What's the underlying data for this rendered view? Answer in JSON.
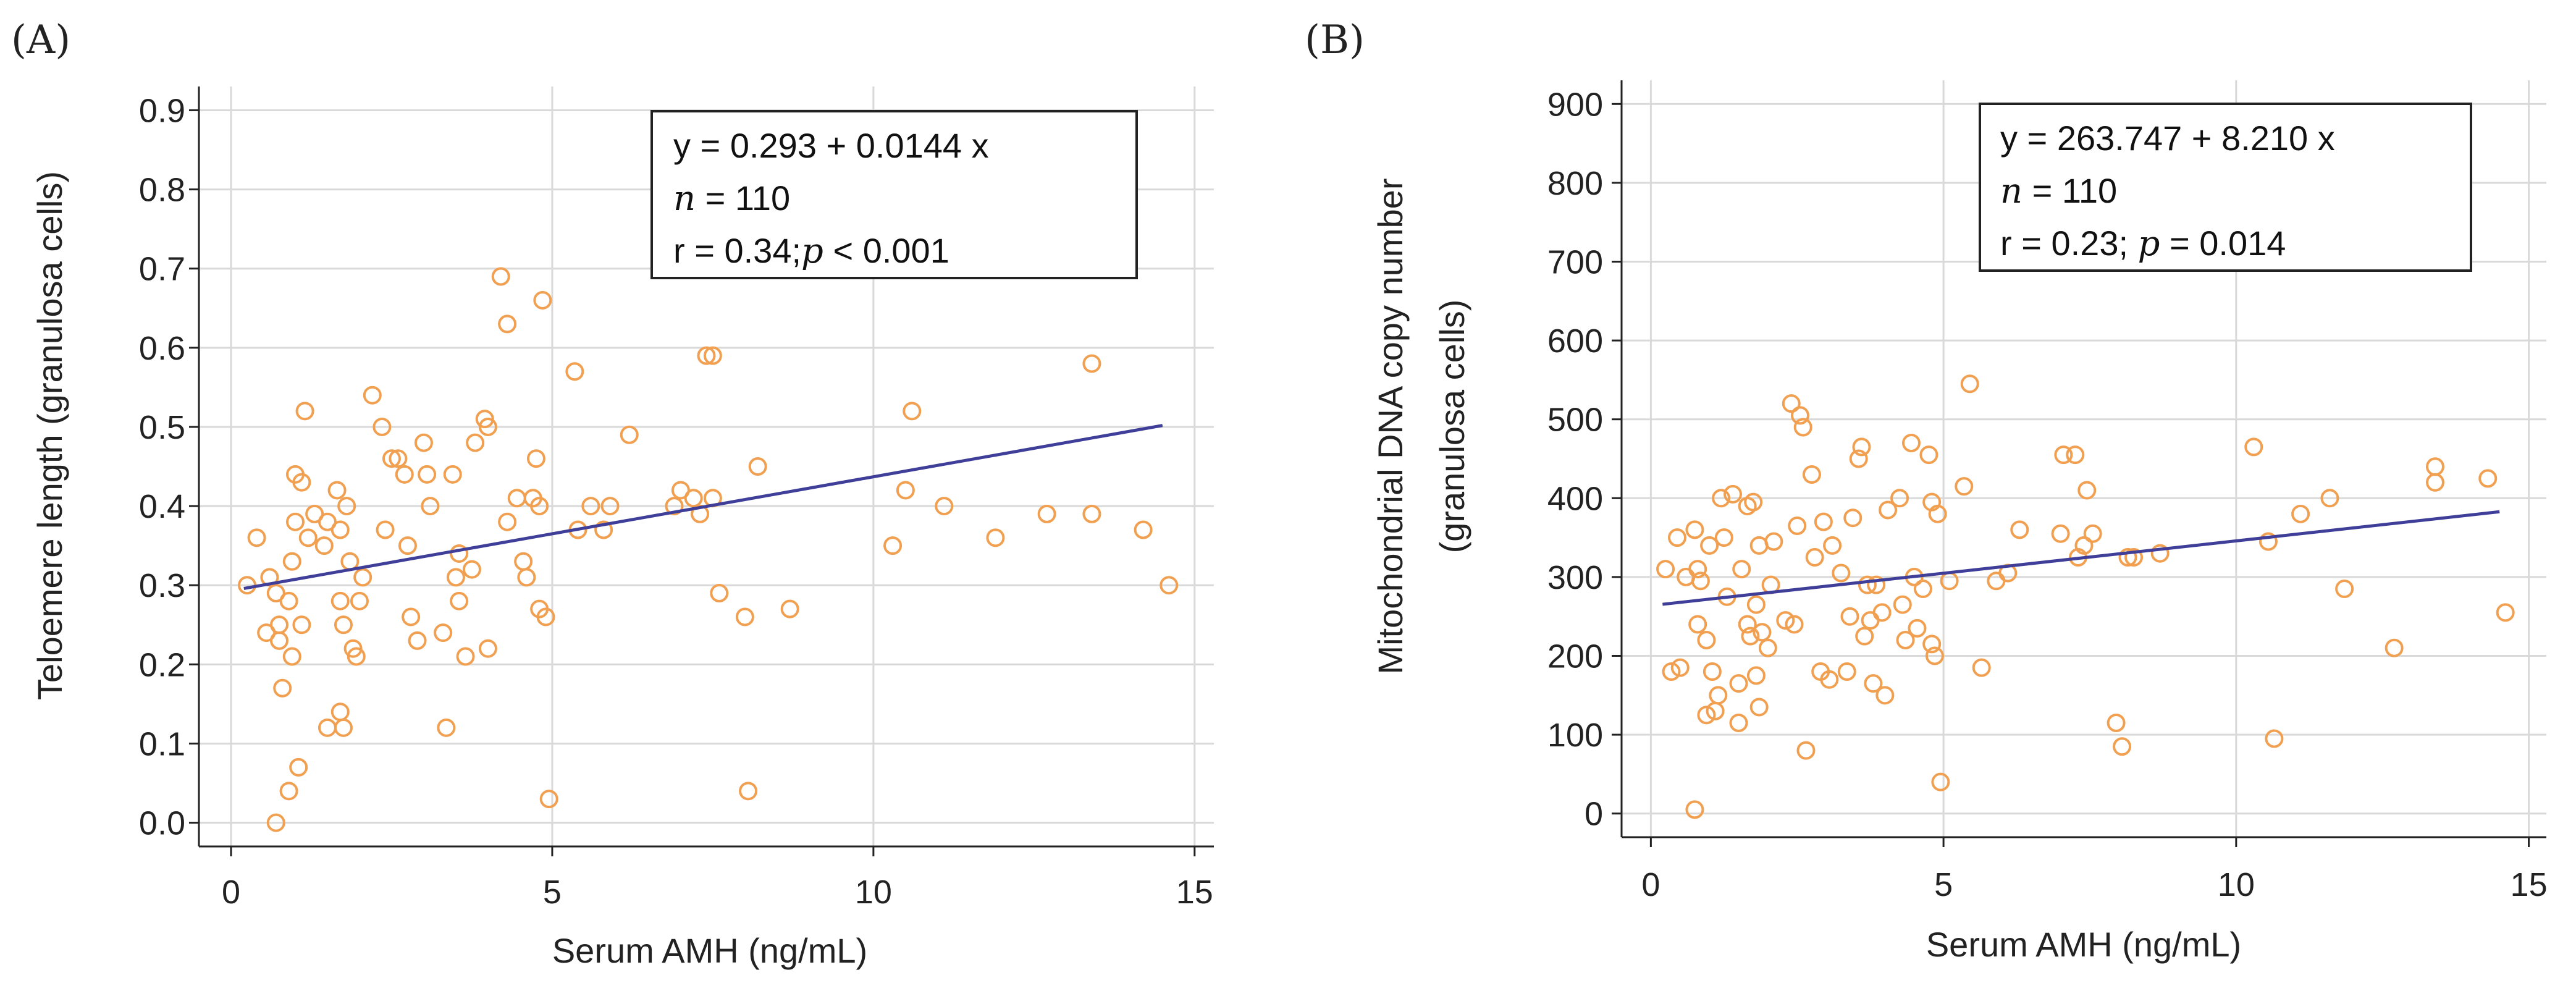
{
  "chart_data": [
    {
      "type": "scatter",
      "panel_label": "(A)",
      "xlabel": "Serum AMH (ng/mL)",
      "ylabel_lines": [
        "Teloemere length  (granulosa cells)"
      ],
      "xlim": [
        -0.5,
        15.3
      ],
      "ylim": [
        -0.03,
        0.93
      ],
      "xticks": [
        0,
        5,
        10,
        15
      ],
      "xtick_labels": [
        "0",
        "5",
        "10",
        "15"
      ],
      "yticks": [
        0,
        0.1,
        0.2,
        0.3,
        0.4,
        0.5,
        0.6,
        0.7,
        0.8,
        0.9
      ],
      "ytick_labels": [
        "0.0",
        "0.1",
        "0.2",
        "0.3",
        "0.4",
        "0.5",
        "0.6",
        "0.7",
        "0.8",
        "0.9"
      ],
      "grid": true,
      "regression": {
        "intercept": 0.293,
        "slope": 0.0144,
        "x_range": [
          0.2,
          14.5
        ]
      },
      "stats": {
        "eq_prefix": "y = 0.293  +  0.0144  x",
        "n_symbol": "n",
        "n_text": " = 110",
        "r_text": "r = 0.34;",
        "p_symbol": "p",
        "p_text": " < 0.001"
      },
      "annotation_position": "top-right",
      "colors": {
        "point": "#f0a050",
        "line": "#3f3f9a"
      },
      "points": [
        [
          0.25,
          0.3
        ],
        [
          0.4,
          0.36
        ],
        [
          0.55,
          0.24
        ],
        [
          0.6,
          0.31
        ],
        [
          0.7,
          0.29
        ],
        [
          0.75,
          0.25
        ],
        [
          0.75,
          0.23
        ],
        [
          0.8,
          0.17
        ],
        [
          0.7,
          0.0
        ],
        [
          0.9,
          0.04
        ],
        [
          0.95,
          0.21
        ],
        [
          0.9,
          0.28
        ],
        [
          0.95,
          0.33
        ],
        [
          1.0,
          0.38
        ],
        [
          1.0,
          0.44
        ],
        [
          1.1,
          0.43
        ],
        [
          1.15,
          0.52
        ],
        [
          1.2,
          0.36
        ],
        [
          1.3,
          0.39
        ],
        [
          1.1,
          0.25
        ],
        [
          1.05,
          0.07
        ],
        [
          1.5,
          0.38
        ],
        [
          1.45,
          0.35
        ],
        [
          1.5,
          0.12
        ],
        [
          1.65,
          0.42
        ],
        [
          1.7,
          0.37
        ],
        [
          1.7,
          0.28
        ],
        [
          1.75,
          0.25
        ],
        [
          1.7,
          0.14
        ],
        [
          1.75,
          0.12
        ],
        [
          1.8,
          0.4
        ],
        [
          1.85,
          0.33
        ],
        [
          1.9,
          0.22
        ],
        [
          1.95,
          0.21
        ],
        [
          2.0,
          0.28
        ],
        [
          2.05,
          0.31
        ],
        [
          2.2,
          0.54
        ],
        [
          2.35,
          0.5
        ],
        [
          2.4,
          0.37
        ],
        [
          2.5,
          0.46
        ],
        [
          2.6,
          0.46
        ],
        [
          2.7,
          0.44
        ],
        [
          2.75,
          0.35
        ],
        [
          2.8,
          0.26
        ],
        [
          2.9,
          0.23
        ],
        [
          3.0,
          0.48
        ],
        [
          3.05,
          0.44
        ],
        [
          3.1,
          0.4
        ],
        [
          3.3,
          0.24
        ],
        [
          3.35,
          0.12
        ],
        [
          3.45,
          0.44
        ],
        [
          3.5,
          0.31
        ],
        [
          3.55,
          0.34
        ],
        [
          3.55,
          0.28
        ],
        [
          3.65,
          0.21
        ],
        [
          3.75,
          0.32
        ],
        [
          3.8,
          0.48
        ],
        [
          3.95,
          0.51
        ],
        [
          4.0,
          0.5
        ],
        [
          4.0,
          0.22
        ],
        [
          4.2,
          0.69
        ],
        [
          4.3,
          0.63
        ],
        [
          4.3,
          0.38
        ],
        [
          4.45,
          0.41
        ],
        [
          4.55,
          0.33
        ],
        [
          4.6,
          0.31
        ],
        [
          4.7,
          0.41
        ],
        [
          4.75,
          0.46
        ],
        [
          4.8,
          0.4
        ],
        [
          4.8,
          0.27
        ],
        [
          4.85,
          0.66
        ],
        [
          4.9,
          0.26
        ],
        [
          4.95,
          0.03
        ],
        [
          5.35,
          0.57
        ],
        [
          5.4,
          0.37
        ],
        [
          5.6,
          0.4
        ],
        [
          5.8,
          0.37
        ],
        [
          5.9,
          0.4
        ],
        [
          6.2,
          0.49
        ],
        [
          6.9,
          0.4
        ],
        [
          7.0,
          0.42
        ],
        [
          7.2,
          0.41
        ],
        [
          7.3,
          0.39
        ],
        [
          7.4,
          0.59
        ],
        [
          7.5,
          0.59
        ],
        [
          7.5,
          0.41
        ],
        [
          7.6,
          0.29
        ],
        [
          8.0,
          0.26
        ],
        [
          8.05,
          0.04
        ],
        [
          8.2,
          0.45
        ],
        [
          8.7,
          0.27
        ],
        [
          10.3,
          0.35
        ],
        [
          10.5,
          0.42
        ],
        [
          10.6,
          0.52
        ],
        [
          11.1,
          0.4
        ],
        [
          11.9,
          0.36
        ],
        [
          12.7,
          0.39
        ],
        [
          13.4,
          0.58
        ],
        [
          13.4,
          0.39
        ],
        [
          14.2,
          0.37
        ],
        [
          14.6,
          0.3
        ]
      ]
    },
    {
      "type": "scatter",
      "panel_label": "(B)",
      "xlabel": "Serum AMH (ng/mL)",
      "ylabel_lines": [
        "Mitochondrial DNA copy number",
        "(granulosa cells)"
      ],
      "xlim": [
        -0.5,
        15.3
      ],
      "ylim": [
        -30,
        930
      ],
      "xticks": [
        0,
        5,
        10,
        15
      ],
      "xtick_labels": [
        "0",
        "5",
        "10",
        "15"
      ],
      "yticks": [
        0,
        100,
        200,
        300,
        400,
        500,
        600,
        700,
        800,
        900
      ],
      "ytick_labels": [
        "0",
        "100",
        "200",
        "300",
        "400",
        "500",
        "600",
        "700",
        "800",
        "900"
      ],
      "grid": true,
      "regression": {
        "intercept": 263.747,
        "slope": 8.21,
        "x_range": [
          0.2,
          14.5
        ]
      },
      "stats": {
        "eq_prefix": "y = 263.747  +  8.210  x",
        "n_symbol": "n",
        "n_text": " = 110",
        "r_text": "r = 0.23; ",
        "p_symbol": "p",
        "p_text": " = 0.014"
      },
      "annotation_position": "top-right",
      "colors": {
        "point": "#f0a050",
        "line": "#3f3f9a"
      },
      "points": [
        [
          0.25,
          310
        ],
        [
          0.35,
          180
        ],
        [
          0.45,
          350
        ],
        [
          0.5,
          185
        ],
        [
          0.6,
          300
        ],
        [
          0.75,
          360
        ],
        [
          0.8,
          310
        ],
        [
          0.8,
          240
        ],
        [
          0.85,
          295
        ],
        [
          0.75,
          5
        ],
        [
          0.95,
          220
        ],
        [
          0.95,
          125
        ],
        [
          1.0,
          340
        ],
        [
          1.05,
          180
        ],
        [
          1.1,
          130
        ],
        [
          1.15,
          150
        ],
        [
          1.2,
          400
        ],
        [
          1.25,
          350
        ],
        [
          1.3,
          275
        ],
        [
          1.4,
          405
        ],
        [
          1.5,
          165
        ],
        [
          1.5,
          115
        ],
        [
          1.55,
          310
        ],
        [
          1.65,
          390
        ],
        [
          1.65,
          240
        ],
        [
          1.7,
          225
        ],
        [
          1.75,
          395
        ],
        [
          1.8,
          265
        ],
        [
          1.8,
          175
        ],
        [
          1.85,
          135
        ],
        [
          1.85,
          340
        ],
        [
          1.9,
          230
        ],
        [
          2.0,
          210
        ],
        [
          2.05,
          290
        ],
        [
          2.1,
          345
        ],
        [
          2.3,
          245
        ],
        [
          2.4,
          520
        ],
        [
          2.45,
          240
        ],
        [
          2.5,
          365
        ],
        [
          2.55,
          505
        ],
        [
          2.6,
          490
        ],
        [
          2.65,
          80
        ],
        [
          2.75,
          430
        ],
        [
          2.8,
          325
        ],
        [
          2.9,
          180
        ],
        [
          2.95,
          370
        ],
        [
          3.05,
          170
        ],
        [
          3.1,
          340
        ],
        [
          3.25,
          305
        ],
        [
          3.35,
          180
        ],
        [
          3.4,
          250
        ],
        [
          3.45,
          375
        ],
        [
          3.55,
          450
        ],
        [
          3.6,
          465
        ],
        [
          3.65,
          225
        ],
        [
          3.7,
          290
        ],
        [
          3.75,
          245
        ],
        [
          3.8,
          165
        ],
        [
          3.85,
          290
        ],
        [
          3.95,
          255
        ],
        [
          4.0,
          150
        ],
        [
          4.05,
          385
        ],
        [
          4.25,
          400
        ],
        [
          4.3,
          265
        ],
        [
          4.35,
          220
        ],
        [
          4.45,
          470
        ],
        [
          4.5,
          300
        ],
        [
          4.55,
          235
        ],
        [
          4.65,
          285
        ],
        [
          4.75,
          455
        ],
        [
          4.8,
          395
        ],
        [
          4.8,
          215
        ],
        [
          4.85,
          200
        ],
        [
          4.9,
          380
        ],
        [
          4.95,
          40
        ],
        [
          5.1,
          295
        ],
        [
          5.35,
          415
        ],
        [
          5.45,
          545
        ],
        [
          5.65,
          185
        ],
        [
          5.9,
          295
        ],
        [
          6.1,
          305
        ],
        [
          6.3,
          360
        ],
        [
          7.0,
          355
        ],
        [
          7.05,
          455
        ],
        [
          7.25,
          455
        ],
        [
          7.3,
          325
        ],
        [
          7.4,
          340
        ],
        [
          7.45,
          410
        ],
        [
          7.55,
          355
        ],
        [
          7.95,
          115
        ],
        [
          8.05,
          85
        ],
        [
          8.15,
          325
        ],
        [
          8.25,
          325
        ],
        [
          8.7,
          330
        ],
        [
          10.3,
          465
        ],
        [
          10.55,
          345
        ],
        [
          10.65,
          95
        ],
        [
          11.1,
          380
        ],
        [
          11.6,
          400
        ],
        [
          11.85,
          285
        ],
        [
          12.7,
          210
        ],
        [
          13.4,
          440
        ],
        [
          13.4,
          420
        ],
        [
          14.3,
          425
        ],
        [
          14.6,
          255
        ]
      ]
    }
  ]
}
